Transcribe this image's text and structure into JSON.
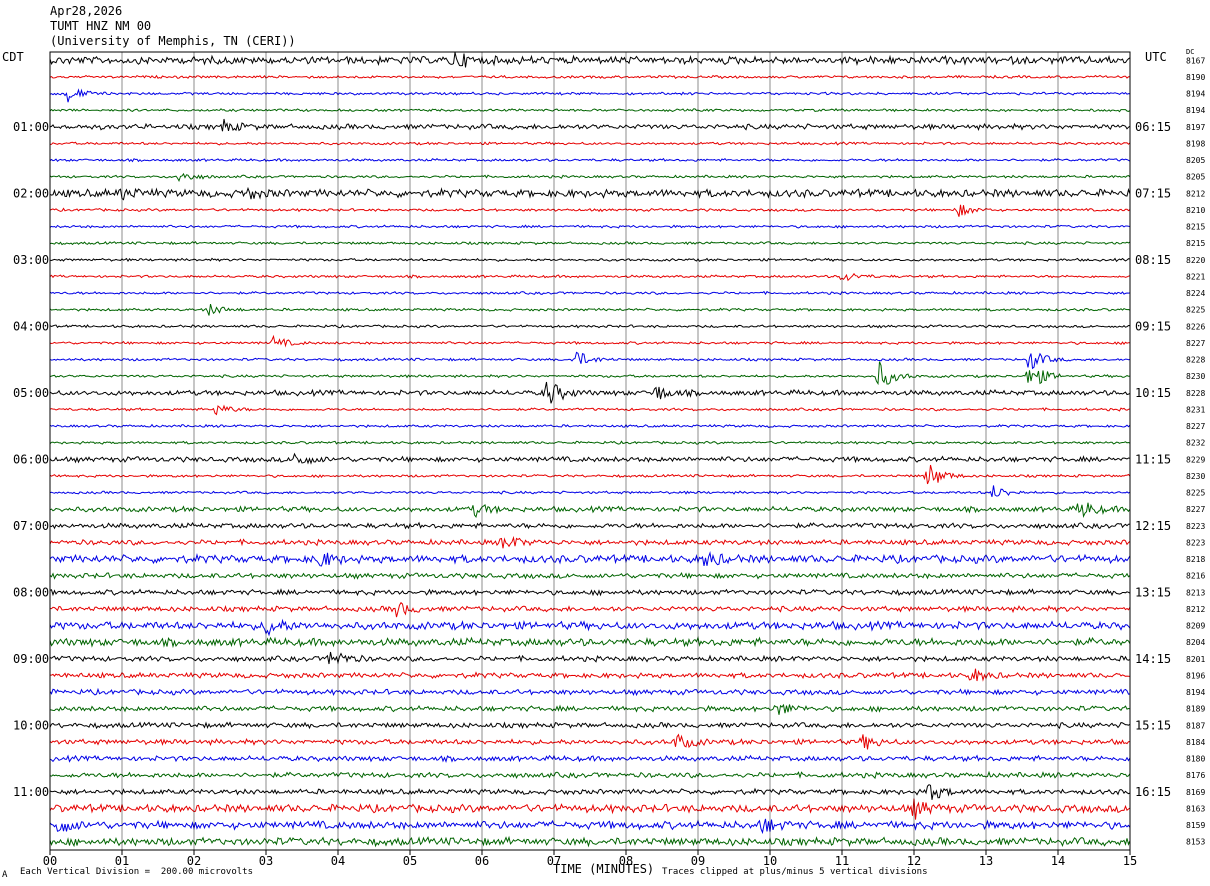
{
  "header": {
    "date": "Apr28,2026",
    "station": "TUMT HNZ NM 00",
    "network": "(University of Memphis, TN (CERI))"
  },
  "tz_left": "CDT",
  "tz_right": "UTC",
  "dc_label": "DC",
  "footer": {
    "left_note": "Each Vertical Division =  200.00 microvolts",
    "right_note": "Traces clipped at plus/minus 5 vertical divisions",
    "mark": "A"
  },
  "colors": {
    "black": "#000000",
    "red": "#e60000",
    "blue": "#0000e6",
    "green": "#006400",
    "grid": "#000000"
  },
  "chart_data": {
    "type": "line",
    "title": "",
    "xlabel": "TIME (MINUTES)",
    "ylabel": "",
    "xlim": [
      0,
      15
    ],
    "x_ticks": [
      "00",
      "01",
      "02",
      "03",
      "04",
      "05",
      "06",
      "07",
      "08",
      "09",
      "10",
      "11",
      "12",
      "13",
      "14",
      "15"
    ],
    "grid": true,
    "trace_colors": [
      "black",
      "red",
      "blue",
      "green"
    ],
    "row_count": 48,
    "left_labels": [
      {
        "row": 4,
        "text": "01:00"
      },
      {
        "row": 8,
        "text": "02:00"
      },
      {
        "row": 12,
        "text": "03:00"
      },
      {
        "row": 16,
        "text": "04:00"
      },
      {
        "row": 20,
        "text": "05:00"
      },
      {
        "row": 24,
        "text": "06:00"
      },
      {
        "row": 28,
        "text": "07:00"
      },
      {
        "row": 32,
        "text": "08:00"
      },
      {
        "row": 36,
        "text": "09:00"
      },
      {
        "row": 40,
        "text": "10:00"
      },
      {
        "row": 44,
        "text": "11:00"
      }
    ],
    "right_labels": [
      {
        "row": 4,
        "text": "06:15"
      },
      {
        "row": 8,
        "text": "07:15"
      },
      {
        "row": 12,
        "text": "08:15"
      },
      {
        "row": 16,
        "text": "09:15"
      },
      {
        "row": 20,
        "text": "10:15"
      },
      {
        "row": 24,
        "text": "11:15"
      },
      {
        "row": 28,
        "text": "12:15"
      },
      {
        "row": 32,
        "text": "13:15"
      },
      {
        "row": 36,
        "text": "14:15"
      },
      {
        "row": 40,
        "text": "15:15"
      },
      {
        "row": 44,
        "text": "16:15"
      }
    ],
    "dc_values": [
      "8167",
      "8190",
      "8194",
      "8194",
      "8197",
      "8198",
      "8205",
      "8205",
      "8212",
      "8210",
      "8215",
      "8215",
      "8220",
      "8221",
      "8224",
      "8225",
      "8226",
      "8227",
      "8228",
      "8230",
      "8228",
      "8231",
      "8227",
      "8232",
      "8229",
      "8230",
      "8225",
      "8227",
      "8223",
      "8223",
      "8218",
      "8216",
      "8213",
      "8212",
      "8209",
      "8204",
      "8201",
      "8196",
      "8194",
      "8189",
      "8187",
      "8184",
      "8180",
      "8176",
      "8169",
      "8163",
      "8159",
      "8153"
    ],
    "noise_level": [
      3,
      1,
      1,
      1,
      2,
      1,
      1,
      1,
      3,
      1,
      1,
      1,
      1,
      1,
      1,
      1,
      1,
      1,
      1,
      1,
      2,
      1,
      1,
      1,
      2,
      1,
      1,
      2,
      2,
      2,
      3,
      2,
      2,
      2,
      3,
      3,
      2,
      2,
      2,
      2,
      2,
      2,
      2,
      2,
      2,
      3,
      3,
      3
    ],
    "events": [
      {
        "row": 0,
        "minute": 5.6,
        "amp": 8
      },
      {
        "row": 2,
        "minute": 0.25,
        "amp": 8
      },
      {
        "row": 4,
        "minute": 2.4,
        "amp": 6
      },
      {
        "row": 7,
        "minute": 1.8,
        "amp": 6
      },
      {
        "row": 8,
        "minute": 1.0,
        "amp": 5
      },
      {
        "row": 8,
        "minute": 2.7,
        "amp": 5
      },
      {
        "row": 9,
        "minute": 12.6,
        "amp": 7
      },
      {
        "row": 13,
        "minute": 11.0,
        "amp": 6
      },
      {
        "row": 15,
        "minute": 2.2,
        "amp": 6
      },
      {
        "row": 17,
        "minute": 3.1,
        "amp": 6
      },
      {
        "row": 18,
        "minute": 7.3,
        "amp": 9
      },
      {
        "row": 18,
        "minute": 13.6,
        "amp": 12
      },
      {
        "row": 19,
        "minute": 11.5,
        "amp": 16
      },
      {
        "row": 19,
        "minute": 13.6,
        "amp": 16
      },
      {
        "row": 20,
        "minute": 6.9,
        "amp": 14
      },
      {
        "row": 20,
        "minute": 8.4,
        "amp": 8
      },
      {
        "row": 21,
        "minute": 2.3,
        "amp": 6
      },
      {
        "row": 24,
        "minute": 3.4,
        "amp": 8
      },
      {
        "row": 25,
        "minute": 12.2,
        "amp": 14
      },
      {
        "row": 26,
        "minute": 13.1,
        "amp": 7
      },
      {
        "row": 27,
        "minute": 14.3,
        "amp": 10
      },
      {
        "row": 27,
        "minute": 5.9,
        "amp": 6
      },
      {
        "row": 29,
        "minute": 6.3,
        "amp": 8
      },
      {
        "row": 30,
        "minute": 3.7,
        "amp": 9
      },
      {
        "row": 30,
        "minute": 9.1,
        "amp": 8
      },
      {
        "row": 33,
        "minute": 4.8,
        "amp": 8
      },
      {
        "row": 34,
        "minute": 3.0,
        "amp": 10
      },
      {
        "row": 36,
        "minute": 3.9,
        "amp": 10
      },
      {
        "row": 37,
        "minute": 12.8,
        "amp": 7
      },
      {
        "row": 39,
        "minute": 10.1,
        "amp": 7
      },
      {
        "row": 41,
        "minute": 8.7,
        "amp": 8
      },
      {
        "row": 41,
        "minute": 11.3,
        "amp": 7
      },
      {
        "row": 44,
        "minute": 12.2,
        "amp": 9
      },
      {
        "row": 45,
        "minute": 12.0,
        "amp": 8
      },
      {
        "row": 46,
        "minute": 0.1,
        "amp": 8
      },
      {
        "row": 46,
        "minute": 9.9,
        "amp": 7
      }
    ]
  }
}
